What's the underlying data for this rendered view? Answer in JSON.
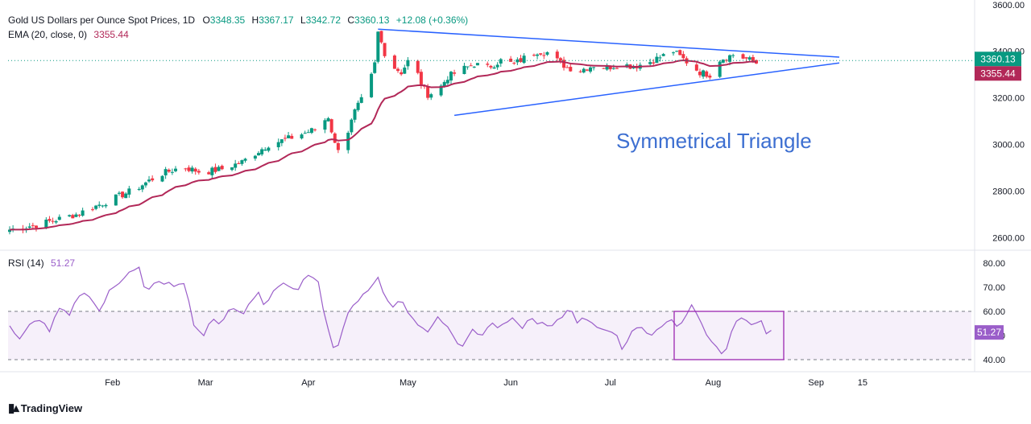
{
  "header": {
    "title": "Gold US Dollars per Ounce Spot Prices, 1D",
    "open_label": "O",
    "open": "3348.35",
    "high_label": "H",
    "high": "3367.17",
    "low_label": "L",
    "low": "3342.72",
    "close_label": "C",
    "close": "3360.13",
    "change": "+12.08 (+0.36%)",
    "ema_label": "EMA (20, close, 0)",
    "ema_value": "3355.44",
    "rsi_label": "RSI (14)",
    "rsi_value": "51.27"
  },
  "annotation": "Symmetrical Triangle",
  "price_tags": {
    "close": "3360.13",
    "ema": "3355.44",
    "rsi": "51.27"
  },
  "brand": "TradingView",
  "colors": {
    "up": "#089981",
    "down": "#f23645",
    "ema": "#b22858",
    "rsi": "#9a5ec9",
    "trend": "#2962ff",
    "annotation": "#3d6fd1",
    "box": "#9c27b0"
  },
  "chart_data": [
    {
      "type": "candlestick",
      "title": "Gold US Dollars per Ounce Spot Prices, 1D",
      "ylim": [
        2550,
        3620
      ],
      "y_ticks": [
        "2600.00",
        "2800.00",
        "3000.00",
        "3200.00",
        "3400.00",
        "3600.00"
      ],
      "x_ticks": [
        "Feb",
        "Mar",
        "Apr",
        "May",
        "Jun",
        "Jul",
        "Aug",
        "Sep",
        "15"
      ],
      "series": [
        {
          "name": "EMA (20, close, 0)",
          "last": 3355.44
        },
        {
          "name": "Price",
          "last_close": 3360.13
        }
      ],
      "annotation": "Symmetrical Triangle",
      "trendlines": [
        {
          "from": [
            "Apr 22",
            3495
          ],
          "to": [
            "Sep 8",
            3375
          ]
        },
        {
          "from": [
            "May 15",
            3125
          ],
          "to": [
            "Sep 8",
            3350
          ]
        }
      ]
    },
    {
      "type": "line",
      "title": "RSI (14)",
      "ylim": [
        35,
        85
      ],
      "y_ticks": [
        "40.00",
        "50.00",
        "60.00",
        "70.00",
        "80.00"
      ],
      "band": [
        40,
        60
      ],
      "last": 51.27
    }
  ]
}
